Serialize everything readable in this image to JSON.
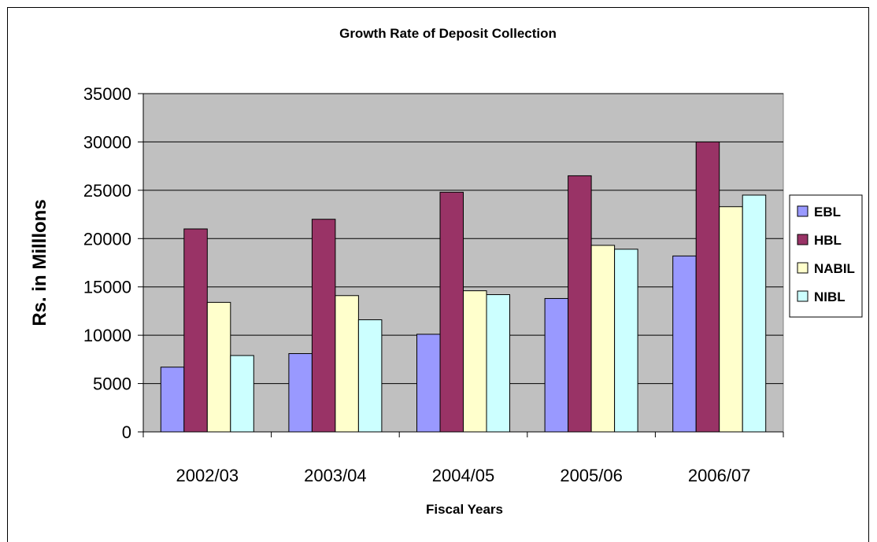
{
  "chart_data": {
    "type": "bar",
    "title": "Growth Rate of Deposit Collection",
    "xlabel": "Fiscal Years",
    "ylabel": "Rs. in Milllons",
    "categories": [
      "2002/03",
      "2003/04",
      "2004/05",
      "2005/06",
      "2006/07"
    ],
    "ylim": [
      0,
      35000
    ],
    "yticks": [
      0,
      5000,
      10000,
      15000,
      20000,
      25000,
      30000,
      35000
    ],
    "grid": true,
    "legend": "right",
    "plot_background": "#c0c0c0",
    "series": [
      {
        "name": "EBL",
        "color": "#9999ff",
        "values": [
          6700,
          8100,
          10100,
          13800,
          18200
        ]
      },
      {
        "name": "HBL",
        "color": "#993366",
        "values": [
          21000,
          22000,
          24800,
          26500,
          30000
        ]
      },
      {
        "name": "NABIL",
        "color": "#ffffcc",
        "values": [
          13400,
          14100,
          14600,
          19300,
          23300
        ]
      },
      {
        "name": "NIBL",
        "color": "#ccffff",
        "values": [
          7900,
          11600,
          14200,
          18900,
          24500
        ]
      }
    ]
  }
}
